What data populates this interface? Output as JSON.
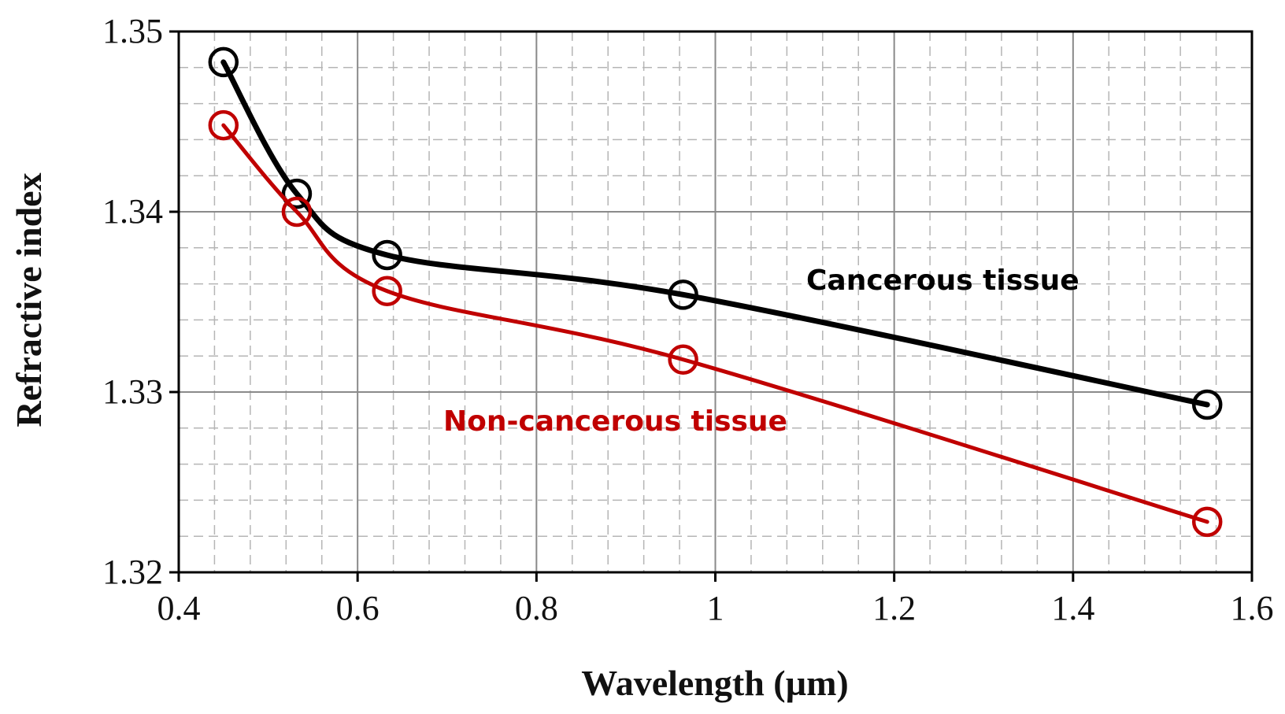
{
  "chart_data": {
    "type": "line",
    "xlabel": "Wavelength (µm)",
    "ylabel": "Refractive index",
    "xlim": [
      0.4,
      1.6
    ],
    "ylim": [
      1.32,
      1.35
    ],
    "x_major_ticks": [
      0.4,
      0.6,
      0.8,
      1,
      1.2,
      1.4,
      1.6
    ],
    "x_tick_labels": [
      "0.4",
      "0.6",
      "0.8",
      "1",
      "1.2",
      "1.4",
      "1.6"
    ],
    "y_major_ticks": [
      1.32,
      1.33,
      1.34,
      1.35
    ],
    "y_tick_labels": [
      "1.32",
      "1.33",
      "1.34",
      "1.35"
    ],
    "x_minor_step": 0.04,
    "y_minor_step": 0.002,
    "grid": true,
    "legend": "none (series labeled inline on chart)",
    "series": [
      {
        "name": "Cancerous tissue",
        "color": "#000000",
        "x": [
          0.45,
          0.532,
          0.633,
          0.964,
          1.55
        ],
        "y": [
          1.3483,
          1.341,
          1.3376,
          1.3354,
          1.3293
        ]
      },
      {
        "name": "Non-cancerous tissue",
        "color": "#c00000",
        "x": [
          0.45,
          0.532,
          0.633,
          0.964,
          1.55
        ],
        "y": [
          1.3448,
          1.34,
          1.3356,
          1.3318,
          1.3228
        ]
      }
    ]
  }
}
